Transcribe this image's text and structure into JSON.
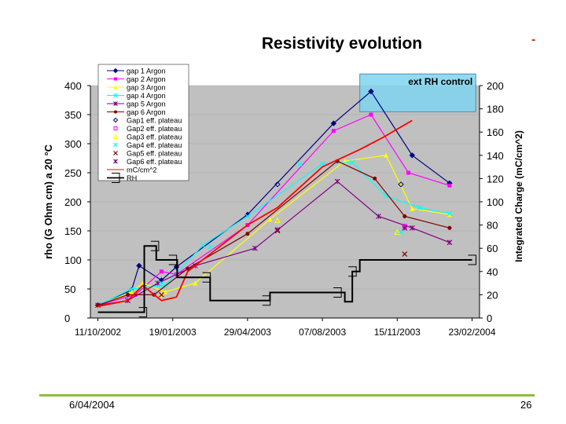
{
  "slide": {
    "title": "Resistivity evolution",
    "title_dash": "-",
    "footer_date": "6/04/2004",
    "page_number": "26",
    "footer_color": "#8bbf3a"
  },
  "chart_data": {
    "type": "line",
    "title": "Resistivity evolution",
    "ylabel": "rho (G Ohm cm) a 20 °C",
    "y2label": "Integrated Charge (mC/cm^2)",
    "xlabel": "",
    "ylim": [
      0,
      400
    ],
    "yticks": [
      0,
      50,
      100,
      150,
      200,
      250,
      300,
      350,
      400
    ],
    "y2lim": [
      0,
      200
    ],
    "y2ticks": [
      0,
      20,
      40,
      60,
      80,
      100,
      120,
      140,
      160,
      180,
      200
    ],
    "xticks": [
      0,
      100,
      200,
      300,
      400,
      500
    ],
    "xtick_labels": [
      "11/10/2002",
      "19/01/2003",
      "29/04/2003",
      "07/08/2003",
      "15/11/2003",
      "23/02/2004"
    ],
    "xlim": [
      -10,
      510
    ],
    "plot_background": "#c0c0c0",
    "annotation": {
      "text": "ext RH control",
      "x1": 350,
      "x2": 505,
      "y1": 355,
      "y2": 420,
      "color": "#7fd3ee"
    },
    "series": [
      {
        "name": "gap 1 Argon",
        "color": "#000080",
        "marker": "diamond",
        "x": [
          0,
          45,
          55,
          85,
          105,
          200,
          315,
          365,
          420,
          470
        ],
        "y": [
          22,
          48,
          90,
          65,
          88,
          178,
          335,
          390,
          280,
          232
        ]
      },
      {
        "name": "gap 2 Argon",
        "color": "#ff00ff",
        "marker": "square",
        "x": [
          0,
          50,
          85,
          105,
          200,
          315,
          365,
          415,
          470
        ],
        "y": [
          22,
          40,
          80,
          75,
          160,
          322,
          350,
          250,
          228
        ]
      },
      {
        "name": "gap 3 Argon",
        "color": "#ffff00",
        "marker": "triangle",
        "x": [
          0,
          45,
          60,
          90,
          130,
          230,
          330,
          385,
          420,
          470
        ],
        "y": [
          22,
          45,
          60,
          45,
          60,
          170,
          270,
          280,
          188,
          178
        ]
      },
      {
        "name": "gap 4 Argon",
        "color": "#00ffff",
        "marker": "x",
        "x": [
          0,
          45,
          90,
          140,
          200,
          300,
          340,
          385,
          430,
          470
        ],
        "y": [
          22,
          50,
          56,
          125,
          175,
          265,
          268,
          210,
          190,
          180
        ]
      },
      {
        "name": "gap 5 Argon",
        "color": "#800080",
        "marker": "star",
        "x": [
          0,
          40,
          80,
          130,
          210,
          320,
          375,
          420,
          470
        ],
        "y": [
          22,
          30,
          60,
          90,
          120,
          235,
          175,
          155,
          130
        ]
      },
      {
        "name": "gap 6 Argon",
        "color": "#800000",
        "marker": "circle",
        "x": [
          0,
          40,
          75,
          120,
          200,
          320,
          370,
          410,
          470
        ],
        "y": [
          22,
          40,
          40,
          85,
          145,
          270,
          240,
          175,
          155
        ]
      },
      {
        "name": "Gap1 eff. plateau",
        "color": "#000080",
        "marker": "open-diamond",
        "line": false,
        "x": [
          240,
          405
        ],
        "y": [
          230,
          230
        ]
      },
      {
        "name": "Gap2 eff. plateau",
        "color": "#ff00ff",
        "marker": "open-square",
        "line": false,
        "x": [
          410
        ],
        "y": [
          158
        ]
      },
      {
        "name": "Gap3 eff. plateau",
        "color": "#ffff00",
        "marker": "open-triangle",
        "line": false,
        "x": [
          85,
          240,
          400
        ],
        "y": [
          40,
          168,
          148
        ]
      },
      {
        "name": "Gap4 eff. plateau",
        "color": "#00ffff",
        "marker": "x",
        "line": false,
        "x": [
          85,
          150,
          270,
          405
        ],
        "y": [
          60,
          122,
          265,
          148
        ]
      },
      {
        "name": "Gap5 eff. plateau",
        "color": "#800000",
        "marker": "x",
        "line": false,
        "x": [
          85,
          240,
          410
        ],
        "y": [
          40,
          150,
          110
        ]
      },
      {
        "name": "Gap6 eff. plateau",
        "color": "#800080",
        "marker": "star",
        "line": false,
        "x": [
          240,
          410
        ],
        "y": [
          152,
          155
        ]
      },
      {
        "name": "mC/cm^2",
        "color": "#ff0000",
        "marker": "none",
        "axis": "y2",
        "x": [
          0,
          40,
          60,
          85,
          105,
          120,
          150,
          200,
          240,
          300,
          350,
          380,
          420
        ],
        "y": [
          10,
          15,
          28,
          15,
          18,
          40,
          55,
          80,
          95,
          130,
          145,
          155,
          170
        ]
      },
      {
        "name": "RH",
        "color": "#000000",
        "marker": "bracket",
        "axis": "y2",
        "step": true,
        "x": [
          0,
          60,
          62,
          76,
          78,
          100,
          106,
          145,
          150,
          225,
          230,
          320,
          330,
          340,
          350,
          500
        ],
        "y": [
          5,
          5,
          62,
          62,
          50,
          50,
          35,
          35,
          15,
          15,
          22,
          22,
          14,
          40,
          50,
          50
        ]
      }
    ]
  }
}
